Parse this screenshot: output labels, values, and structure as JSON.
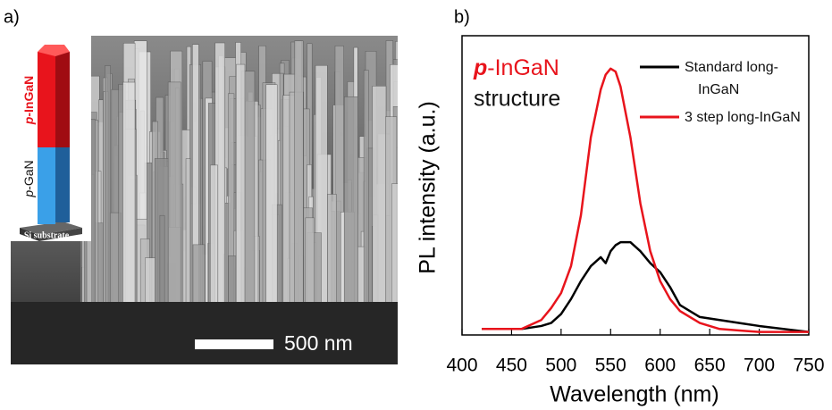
{
  "panel_a": {
    "label": "a)",
    "scale_bar": "500 nm",
    "inset": {
      "top": {
        "emphasis": "p",
        "rest": "-InGaN"
      },
      "middle": {
        "emphasis": "p",
        "rest": "-GaN"
      },
      "substrate": "Si substrate"
    }
  },
  "chart_data": {
    "type": "line",
    "panel_label": "b)",
    "x_label": "Wavelength (nm)",
    "y_label": "PL intensity (a.u.)",
    "annotation": {
      "emphasis": "p",
      "rest": "-InGaN",
      "line2": "structure"
    },
    "x": [
      420,
      460,
      480,
      490,
      500,
      510,
      520,
      530,
      540,
      545,
      550,
      555,
      560,
      570,
      580,
      590,
      600,
      610,
      620,
      640,
      660,
      680,
      700,
      750
    ],
    "series": [
      {
        "name": "Standard long-InGaN",
        "color": "#000000",
        "values": [
          0.02,
          0.02,
          0.03,
          0.04,
          0.07,
          0.12,
          0.18,
          0.23,
          0.26,
          0.24,
          0.28,
          0.3,
          0.31,
          0.31,
          0.28,
          0.24,
          0.21,
          0.16,
          0.1,
          0.06,
          0.05,
          0.04,
          0.03,
          0.01
        ]
      },
      {
        "name": "3 step long-InGaN",
        "color": "#e8141c",
        "values": [
          0.02,
          0.02,
          0.05,
          0.09,
          0.14,
          0.23,
          0.4,
          0.66,
          0.82,
          0.87,
          0.89,
          0.88,
          0.83,
          0.66,
          0.44,
          0.28,
          0.18,
          0.12,
          0.08,
          0.04,
          0.02,
          0.015,
          0.01,
          0.01
        ]
      }
    ],
    "xlim": [
      400,
      750
    ],
    "ylim": [
      0,
      1
    ],
    "xticks": [
      400,
      450,
      500,
      550,
      600,
      650,
      700,
      750
    ],
    "legend": "upper right"
  }
}
